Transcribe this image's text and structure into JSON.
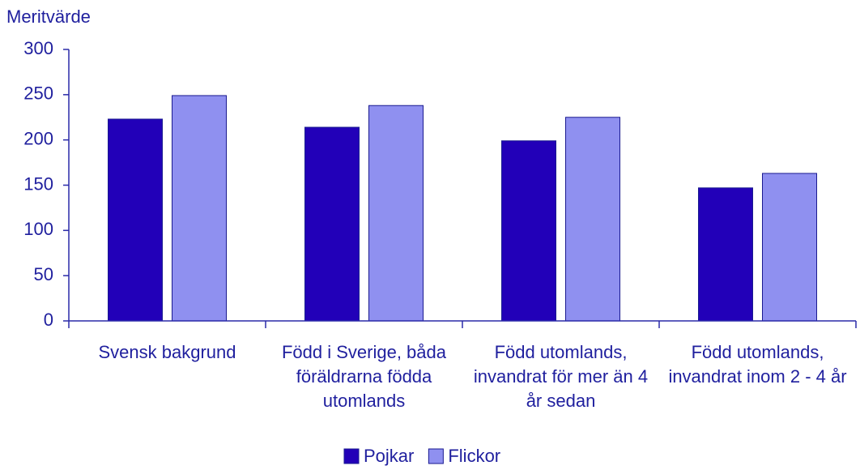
{
  "chart_data": {
    "type": "bar",
    "y_label": "Meritvärde",
    "categories": [
      "Svensk bakgrund",
      "Född i Sverige, båda föräldrarna födda utomlands",
      "Född utomlands, invandrat för mer än 4 år sedan",
      "Född utomlands, invandrat inom 2 - 4 år"
    ],
    "series": [
      {
        "name": "Pojkar",
        "color": "#2200b8",
        "values": [
          223,
          214,
          199,
          147
        ]
      },
      {
        "name": "Flickor",
        "color": "#8f90f0",
        "values": [
          249,
          238,
          225,
          163
        ]
      }
    ],
    "ylim": [
      0,
      300
    ],
    "yticks": [
      0,
      50,
      100,
      150,
      200,
      250,
      300
    ],
    "legend": "bottom"
  }
}
